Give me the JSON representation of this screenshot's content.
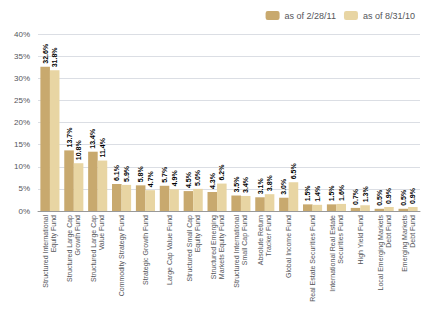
{
  "chart_data": {
    "type": "bar",
    "categories": [
      "Structured International\nEquity Fund",
      "Structured Large Cap\nGrowth Fund",
      "Structured Large Cap\nValue Fund",
      "Commodity Strategy Fund",
      "Strategic Growth Fund",
      "Large Cap Value Fund",
      "Structured Small Cap\nEquity Fund",
      "Structured Emerging\nMarkets Equity Fund",
      "Structured International\nSmall Cap Fund",
      "Absolute Return\nTracker Fund",
      "Global Income Fund",
      "Real Estate Securities Fund",
      "International Real Estate\nSecurities Fund",
      "High Yield Fund",
      "Local Emerging Markets\nDebt Fund",
      "Emerging Markets\nDebt Fund"
    ],
    "series": [
      {
        "name": "as of 2/28/11",
        "color": "#C8A96E",
        "values": [
          32.6,
          13.7,
          13.4,
          6.1,
          5.8,
          5.7,
          4.5,
          4.3,
          3.5,
          3.1,
          3.0,
          1.5,
          1.5,
          0.7,
          0.5,
          0.5
        ],
        "value_labels": [
          "32.6%",
          "13.7%",
          "13.4%",
          "6.1%",
          "5.8%",
          "5.7%",
          "4.5%",
          "4.3%",
          "3.5%",
          "3.1%",
          "3.0%",
          "1.5%",
          "1.5%",
          "0.7%",
          "0.5%",
          "0.5%"
        ]
      },
      {
        "name": "as of 8/31/10",
        "color": "#E8D5A3",
        "values": [
          31.8,
          10.8,
          11.4,
          5.9,
          4.7,
          4.9,
          5.0,
          6.2,
          3.4,
          3.8,
          6.5,
          1.4,
          1.6,
          1.3,
          0.9,
          0.9
        ],
        "value_labels": [
          "31.8%",
          "10.8%",
          "11.4%",
          "5.9%",
          "4.7%",
          "4.9%",
          "5.0%",
          "6.2%",
          "3.4%",
          "3.8%",
          "6.5%",
          "1.4%",
          "1.6%",
          "1.3%",
          "0.9%",
          "0.9%"
        ]
      }
    ],
    "ylim": [
      0,
      40
    ],
    "yticks": [
      {
        "value": 0,
        "label": "0%"
      },
      {
        "value": 5,
        "label": "5%"
      },
      {
        "value": 10,
        "label": "10%"
      },
      {
        "value": 15,
        "label": "15%"
      },
      {
        "value": 20,
        "label": "20%"
      },
      {
        "value": 25,
        "label": "25%"
      },
      {
        "value": 30,
        "label": "30%"
      },
      {
        "value": 35,
        "label": "35%"
      },
      {
        "value": 40,
        "label": "40%"
      }
    ],
    "grid": true,
    "legend": "upper right",
    "data_labels": true
  }
}
